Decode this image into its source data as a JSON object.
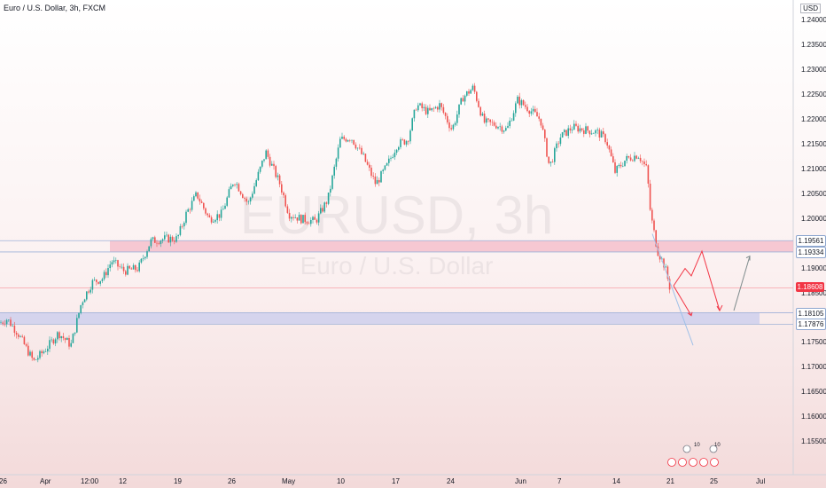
{
  "header": {
    "symbol_title": "Euro / U.S. Dollar, 3h, FXCM",
    "currency_badge": "USD"
  },
  "watermark": {
    "ticker": "EURUSD, 3h",
    "name": "Euro / U.S. Dollar"
  },
  "price_axis": {
    "ticks": [
      "1.24000",
      "1.23500",
      "1.23000",
      "1.22500",
      "1.22000",
      "1.21500",
      "1.21000",
      "1.20500",
      "1.20000",
      "1.19500",
      "1.19000",
      "1.18500",
      "1.18000",
      "1.17500",
      "1.17000",
      "1.16500",
      "1.16000",
      "1.15500"
    ],
    "ylim": [
      1.1525,
      1.2415
    ]
  },
  "time_axis": {
    "labels": [
      "26",
      "Apr",
      "12:00",
      "12",
      "19",
      "26",
      "May",
      "10",
      "17",
      "24",
      "Jun",
      "7",
      "14",
      "21",
      "25",
      "Jul"
    ]
  },
  "price_tags": [
    {
      "label": "1.19561",
      "style": "blue",
      "price": 1.19561
    },
    {
      "label": "1.19334",
      "style": "blue",
      "price": 1.19334
    },
    {
      "label": "1.18608",
      "style": "red",
      "price": 1.18608
    },
    {
      "label": "1.18105",
      "style": "blue",
      "price": 1.18105
    },
    {
      "label": "1.17876",
      "style": "blue",
      "price": 1.17876
    }
  ],
  "zones": [
    {
      "name": "supply-zone",
      "top": 1.19561,
      "bottom": 1.19334,
      "color": "#f3b6c4"
    },
    {
      "name": "demand-zone",
      "top": 1.18105,
      "bottom": 1.17876,
      "color": "#c6cbee"
    }
  ],
  "events": {
    "badge_a": "10",
    "badge_b": "10"
  },
  "colors": {
    "up": "#26a69a",
    "down": "#ef5350",
    "current_price": "#f23645"
  },
  "chart_data": {
    "type": "candlestick",
    "title": "Euro / U.S. Dollar, 3h, FXCM",
    "ylim": [
      1.1525,
      1.2415
    ],
    "waypoints": [
      [
        0,
        1.179
      ],
      [
        8,
        1.1798
      ],
      [
        20,
        1.177
      ],
      [
        38,
        1.1712
      ],
      [
        52,
        1.1738
      ],
      [
        66,
        1.177
      ],
      [
        80,
        1.1745
      ],
      [
        92,
        1.1832
      ],
      [
        104,
        1.1872
      ],
      [
        116,
        1.188
      ],
      [
        126,
        1.1915
      ],
      [
        140,
        1.1895
      ],
      [
        156,
        1.19
      ],
      [
        170,
        1.1955
      ],
      [
        186,
        1.196
      ],
      [
        200,
        1.196
      ],
      [
        210,
        1.201
      ],
      [
        222,
        1.205
      ],
      [
        236,
        1.2
      ],
      [
        250,
        1.201
      ],
      [
        264,
        1.208
      ],
      [
        280,
        1.203
      ],
      [
        300,
        1.2135
      ],
      [
        316,
        1.207
      ],
      [
        326,
        1.201
      ],
      [
        340,
        1.2
      ],
      [
        356,
        1.1995
      ],
      [
        370,
        1.204
      ],
      [
        384,
        1.216
      ],
      [
        396,
        1.2165
      ],
      [
        410,
        1.2125
      ],
      [
        424,
        1.207
      ],
      [
        436,
        1.2105
      ],
      [
        448,
        1.215
      ],
      [
        460,
        1.216
      ],
      [
        470,
        1.223
      ],
      [
        484,
        1.2215
      ],
      [
        496,
        1.223
      ],
      [
        510,
        1.218
      ],
      [
        522,
        1.2245
      ],
      [
        534,
        1.2265
      ],
      [
        546,
        1.2195
      ],
      [
        560,
        1.219
      ],
      [
        572,
        1.218
      ],
      [
        584,
        1.224
      ],
      [
        598,
        1.222
      ],
      [
        610,
        1.22
      ],
      [
        620,
        1.2105
      ],
      [
        632,
        1.2165
      ],
      [
        646,
        1.2185
      ],
      [
        660,
        1.218
      ],
      [
        674,
        1.2175
      ],
      [
        684,
        1.216
      ],
      [
        694,
        1.2095
      ],
      [
        706,
        1.212
      ],
      [
        720,
        1.213
      ],
      [
        730,
        1.21
      ],
      [
        734,
        1.201
      ],
      [
        742,
        1.1935
      ],
      [
        750,
        1.1905
      ],
      [
        756,
        1.186
      ]
    ],
    "projection_red": [
      [
        760,
        1.1865
      ],
      [
        773,
        1.19
      ],
      [
        780,
        1.1885
      ],
      [
        792,
        1.1935
      ],
      [
        812,
        1.1815
      ]
    ],
    "projection_gray": [
      [
        828,
        1.1815
      ],
      [
        846,
        1.1925
      ]
    ],
    "trendline": [
      [
        736,
        1.197
      ],
      [
        782,
        1.1745
      ]
    ]
  }
}
